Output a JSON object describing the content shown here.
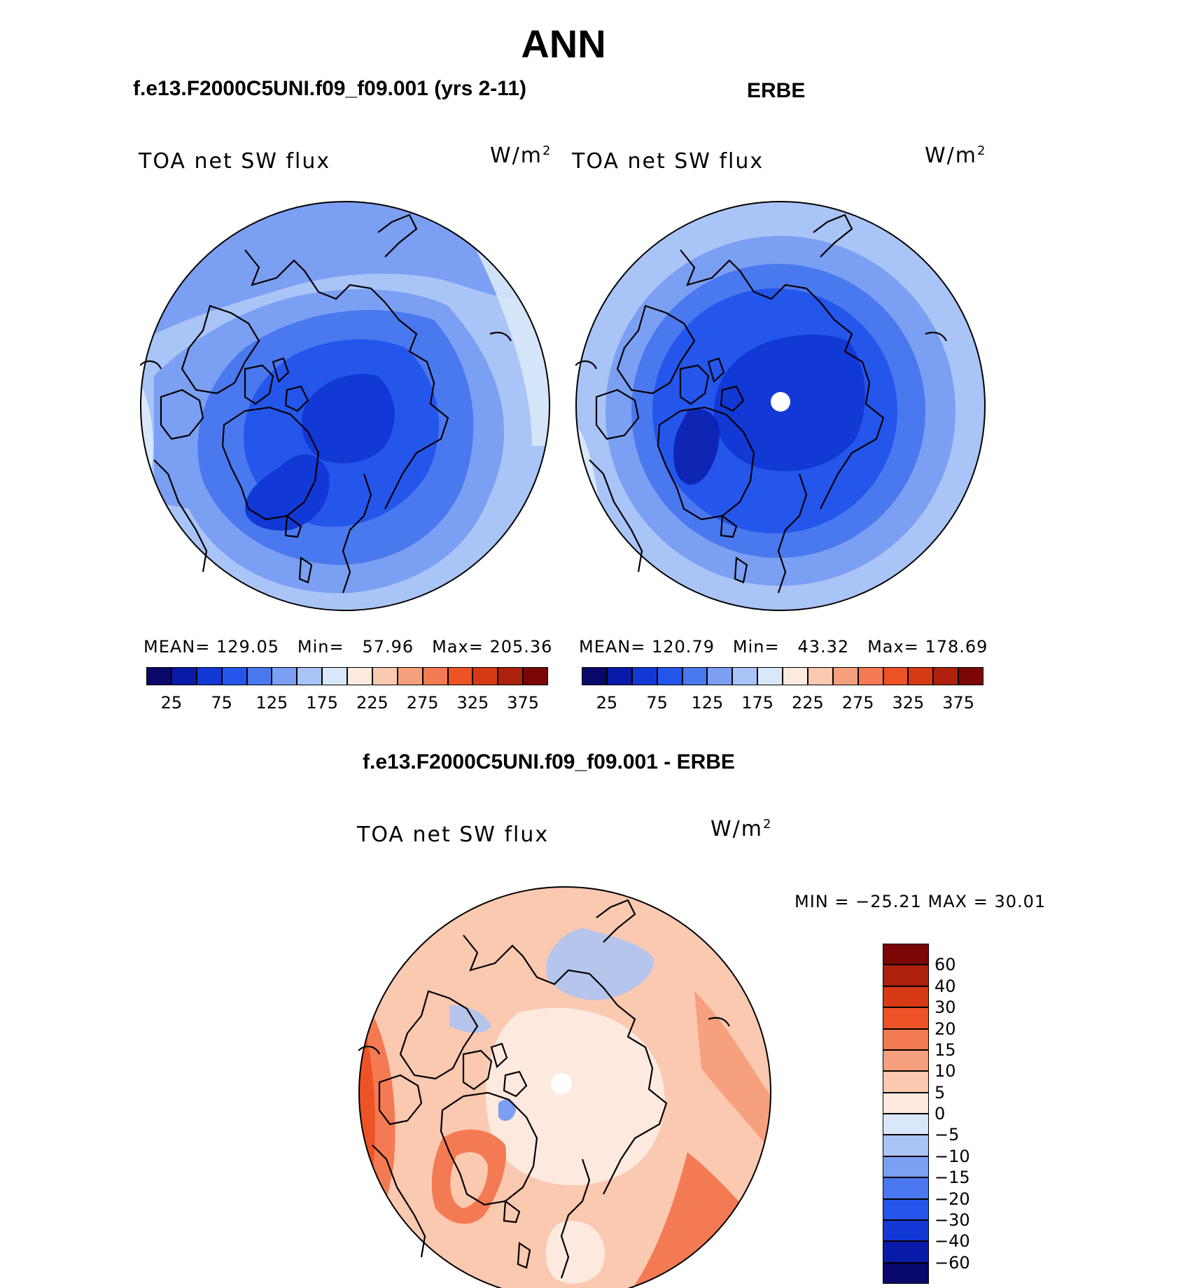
{
  "figure": {
    "title": "ANN"
  },
  "panels": [
    {
      "heading": "f.e13.F2000C5UNI.f09_f09.001 (yrs 2-11)",
      "variable": "TOA net SW flux",
      "units_base": "W/m",
      "units_exp": "2",
      "stats": {
        "mean_label": "MEAN=",
        "mean": "129.05",
        "min_label": "Min=",
        "min": "57.96",
        "max_label": "Max=",
        "max": "205.36"
      }
    },
    {
      "heading": "ERBE",
      "variable": "TOA net SW flux",
      "units_base": "W/m",
      "units_exp": "2",
      "stats": {
        "mean_label": "MEAN=",
        "mean": "120.79",
        "min_label": "Min=",
        "min": "43.32",
        "max_label": "Max=",
        "max": "178.69"
      }
    }
  ],
  "diff_panel": {
    "heading": "f.e13.F2000C5UNI.f09_f09.001 - ERBE",
    "variable": "TOA net SW flux",
    "units_base": "W/m",
    "units_exp": "2",
    "range_text": "MIN = −25.21 MAX =   30.01"
  },
  "colorbar_abs": {
    "colors": [
      "#08086b",
      "#0a1aa8",
      "#1238d6",
      "#2456ec",
      "#4a78ee",
      "#7b9ff2",
      "#a9c4f6",
      "#d8e8fa",
      "#fde9de",
      "#fbc8b0",
      "#f7a07e",
      "#f37a52",
      "#ee5326",
      "#d63a14",
      "#ad200c",
      "#7a0606"
    ],
    "tick_labels": [
      "25",
      "75",
      "125",
      "175",
      "225",
      "275",
      "325",
      "375"
    ]
  },
  "colorbar_diff": {
    "colors": [
      "#08086b",
      "#0a1aa8",
      "#1238d6",
      "#2456ec",
      "#4a78ee",
      "#7b9ff2",
      "#a9c4f6",
      "#d8e8fa",
      "#fde9de",
      "#fbc8b0",
      "#f7a07e",
      "#f37a52",
      "#ee5326",
      "#d63a14",
      "#ad200c",
      "#7a0606"
    ],
    "tick_labels": [
      "−60",
      "−40",
      "−30",
      "−20",
      "−15",
      "−10",
      "−5",
      "0",
      "5",
      "10",
      "15",
      "20",
      "30",
      "40",
      "60"
    ]
  }
}
